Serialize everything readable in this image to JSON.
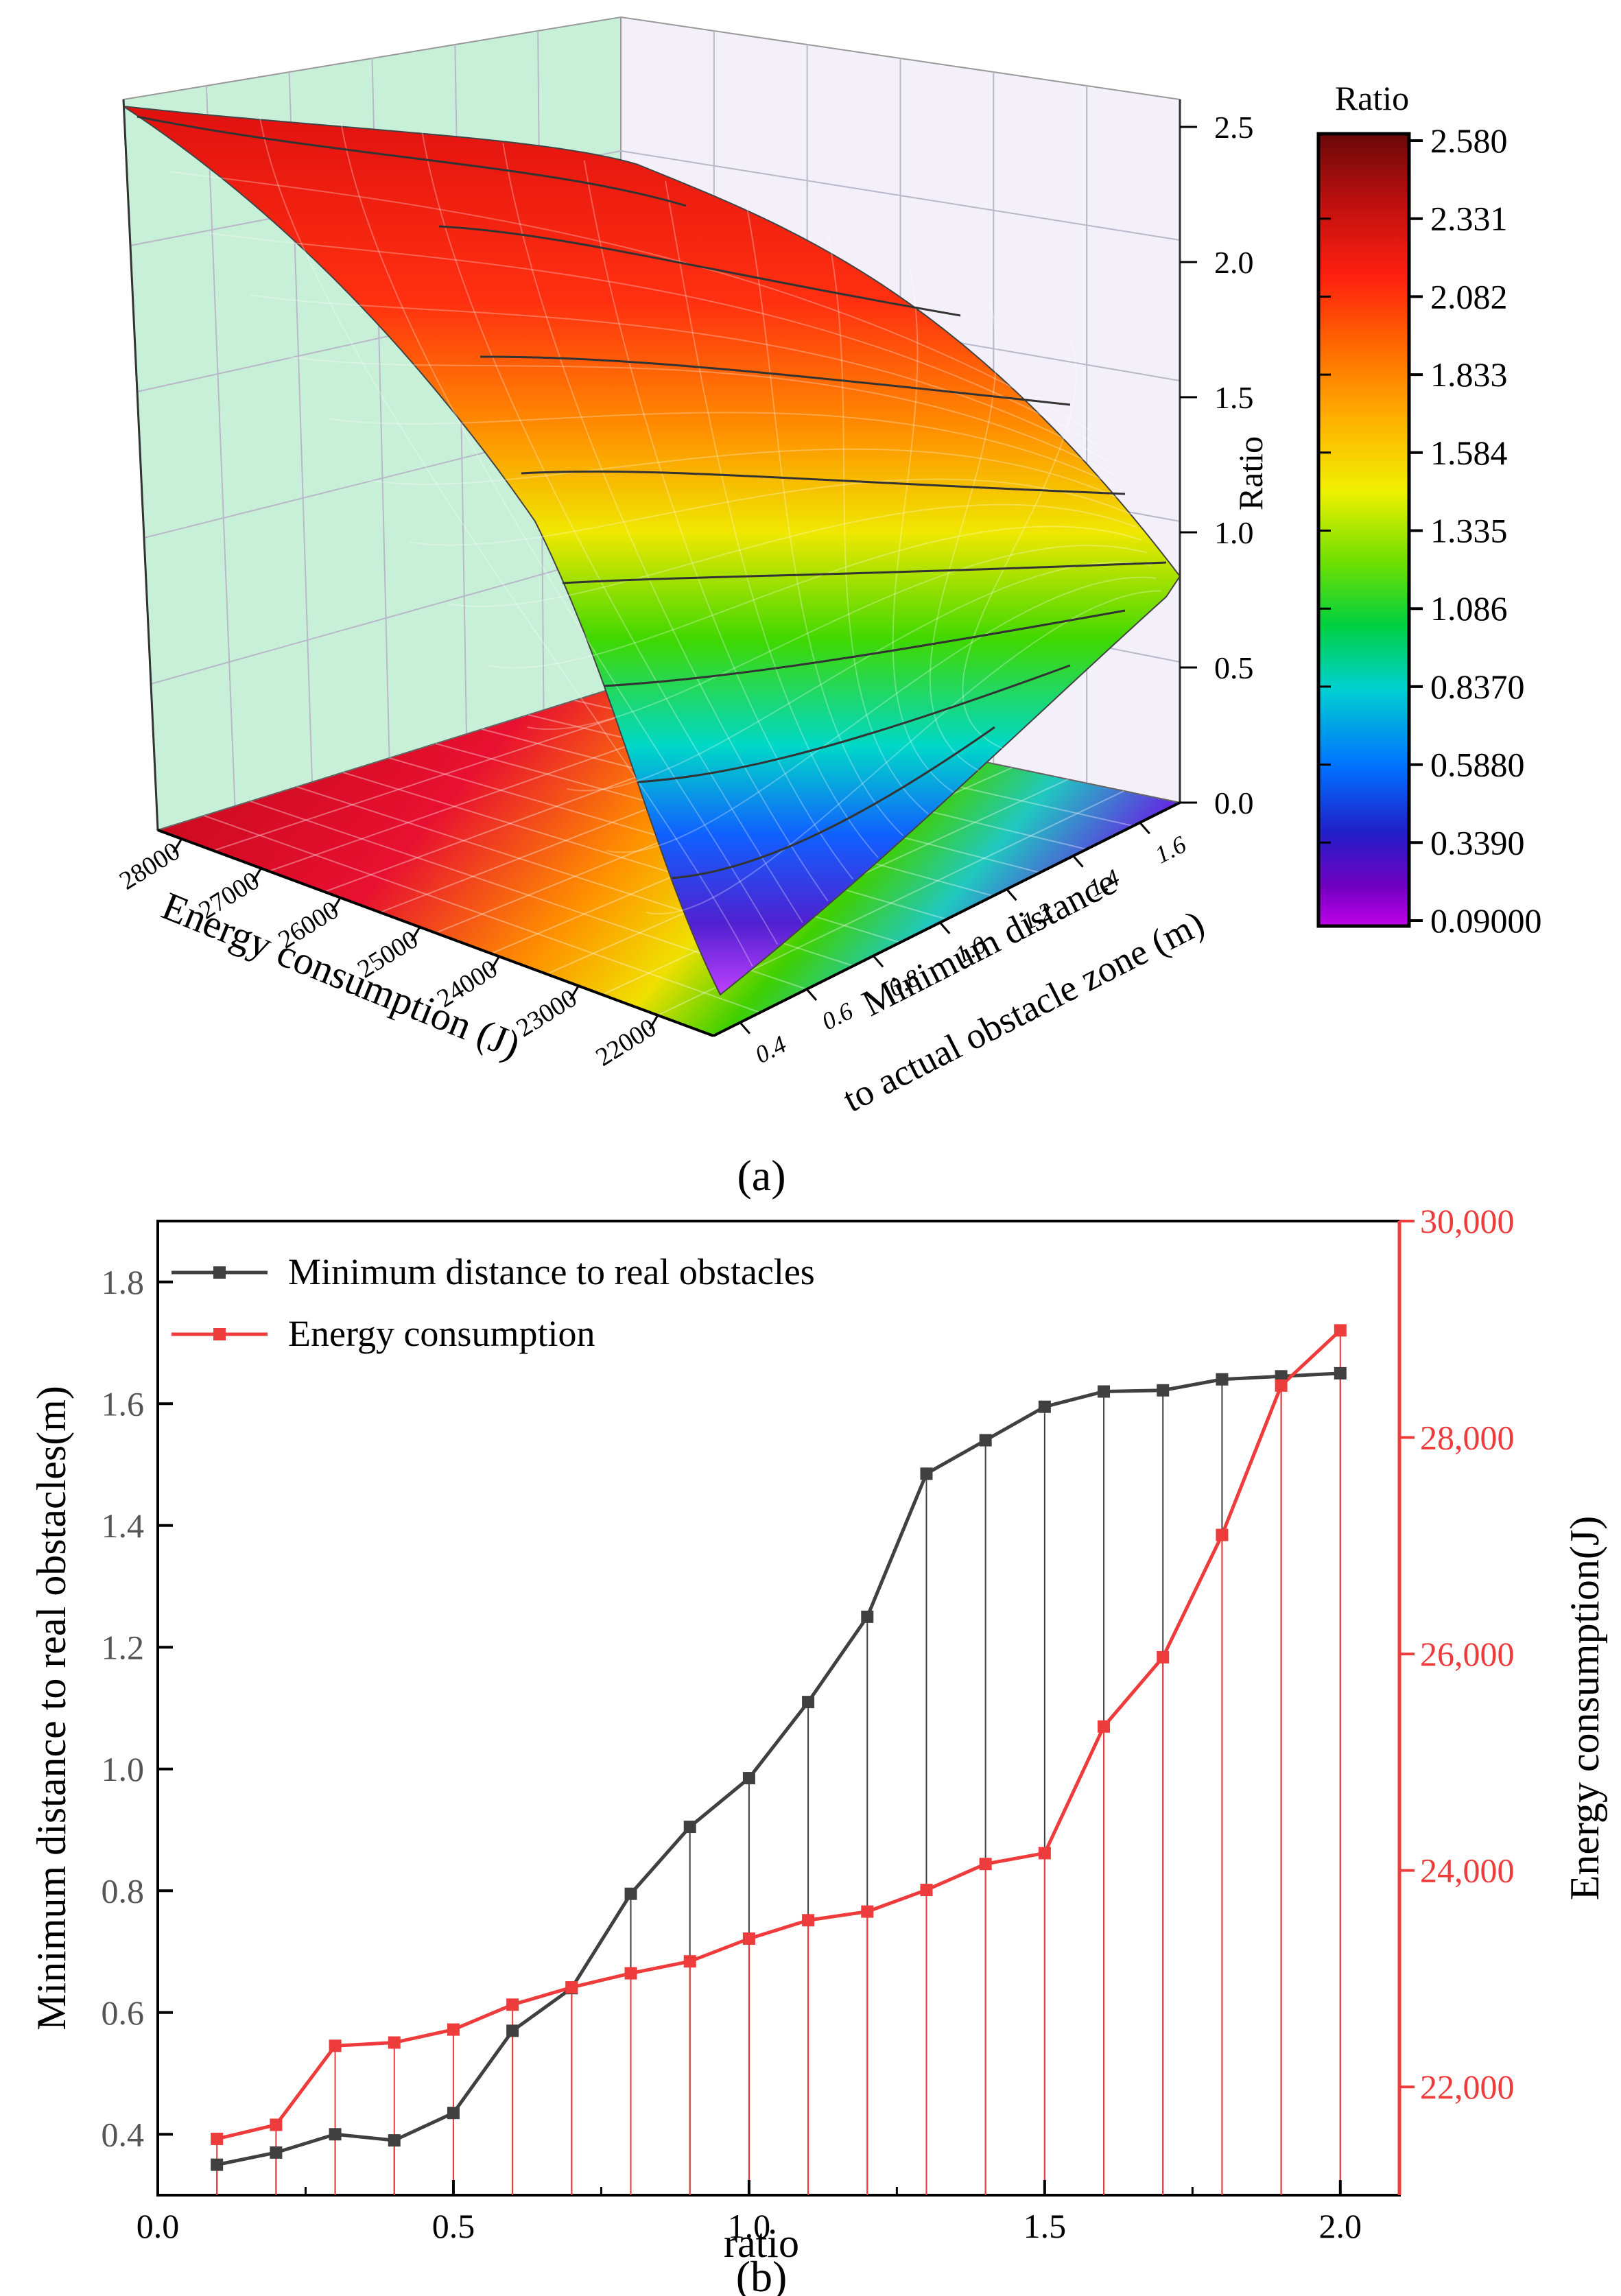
{
  "panel_a": {
    "label": "(a)",
    "colorbar": {
      "title": "Ratio",
      "ticks": [
        "2.580",
        "2.331",
        "2.082",
        "1.833",
        "1.584",
        "1.335",
        "1.086",
        "0.8370",
        "0.5880",
        "0.3390",
        "0.09000"
      ],
      "colors": [
        "#7a0a0a",
        "#d01010",
        "#ff2a10",
        "#ff7a00",
        "#ffc400",
        "#e8f000",
        "#3ce000",
        "#00d0b0",
        "#0080ff",
        "#2020d0",
        "#8000c0",
        "#b000e0"
      ]
    },
    "z_axis": {
      "label": "Ratio",
      "ticks": [
        "2.5",
        "2.0",
        "1.5",
        "1.0",
        "0.5",
        "0.0"
      ]
    },
    "x_axis": {
      "label": "Energy consumption (J)",
      "ticks": [
        "28000",
        "27000",
        "26000",
        "25000",
        "24000",
        "23000",
        "22000"
      ]
    },
    "y_axis": {
      "label_line1": "Minimum distance",
      "label_line2": "to actual obstacle zone (m)",
      "ticks": [
        "1.6",
        "1.4",
        "1.2",
        "1.0",
        "0.8",
        "0.6",
        "0.4"
      ]
    }
  },
  "panel_b": {
    "label": "(b)",
    "legend": {
      "series1": "Minimum distance to real obstacles",
      "series2": "Energy consumption"
    }
  },
  "chart_data": [
    {
      "type": "surface3d",
      "title": "",
      "xlabel": "Energy consumption (J)",
      "ylabel": "Minimum distance to actual obstacle zone (m)",
      "zlabel": "Ratio",
      "zlim": [
        0.0,
        2.5
      ],
      "color_range": [
        0.09,
        2.58
      ]
    },
    {
      "type": "line",
      "title": "",
      "xlabel": "ratio",
      "ylabel": "Minimum distance to real obstacles(m)",
      "y2label": "Energy consumption(J)",
      "xlim": [
        0.0,
        2.1
      ],
      "ylim": [
        0.3,
        1.9
      ],
      "y2lim": [
        21000,
        30000
      ],
      "x_ticks": [
        "0.0",
        "0.5",
        "1.0",
        "1.5",
        "2.0"
      ],
      "y_ticks": [
        "0.4",
        "0.6",
        "0.8",
        "1.0",
        "1.2",
        "1.4",
        "1.6",
        "1.8"
      ],
      "y2_ticks": [
        "22,000",
        "24,000",
        "26,000",
        "28,000",
        "30,000"
      ],
      "x": [
        0.1,
        0.2,
        0.3,
        0.4,
        0.5,
        0.6,
        0.7,
        0.8,
        0.9,
        1.0,
        1.1,
        1.2,
        1.3,
        1.4,
        1.5,
        1.6,
        1.7,
        1.8,
        1.9,
        2.0
      ],
      "series": [
        {
          "name": "Minimum distance to real obstacles",
          "axis": "left",
          "color": "#404040",
          "values": [
            0.35,
            0.37,
            0.4,
            0.39,
            0.435,
            0.57,
            0.64,
            0.795,
            0.905,
            0.985,
            1.11,
            1.25,
            1.485,
            1.54,
            1.595,
            1.62,
            1.622,
            1.64,
            1.645,
            1.65
          ]
        },
        {
          "name": "Energy consumption",
          "axis": "right",
          "color": "#ee3b3b",
          "values": [
            21520,
            21650,
            22380,
            22410,
            22530,
            22760,
            22920,
            23050,
            23160,
            23370,
            23540,
            23620,
            23820,
            24060,
            24160,
            25330,
            25970,
            27100,
            28480,
            28990
          ]
        }
      ]
    }
  ]
}
